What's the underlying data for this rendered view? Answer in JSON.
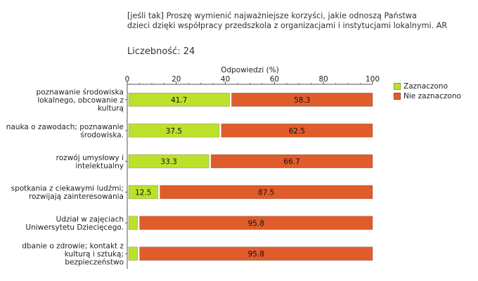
{
  "header": {
    "title_line1": "[jeśli tak] Proszę wymienić najważniejsze korzyści, jakie odnoszą Państwa",
    "title_line2": "dzieci dzięki współpracy przedszkola z organizacjami i instytucjami lokalnymi. AR",
    "count_label": "Liczebność: 24"
  },
  "colors": {
    "zaznaczono": "#bde02b",
    "nie_zaznaczono": "#e05c2a",
    "axis": "#555555",
    "text": "#222222"
  },
  "chart_data": {
    "type": "bar",
    "orientation": "horizontal",
    "stacked": true,
    "xlabel": "Odpowiedzi (%)",
    "xlim": [
      0,
      100
    ],
    "ticks": [
      0,
      20,
      40,
      60,
      80,
      100
    ],
    "categories": [
      [
        "poznawanie środowiska",
        "lokalnego, obcowanie z",
        "kulturą"
      ],
      [
        "nauka o zawodach; poznawanie",
        "środowiska."
      ],
      [
        "rozwój umysłowy i",
        "intelektualny"
      ],
      [
        "spotkania z ciekawymi ludźmi;",
        "rozwijają zainteresowania"
      ],
      [
        "Udział w zajęciach",
        "Uniwersytetu Dziecięcego."
      ],
      [
        "dbanie o zdrowie; kontakt z",
        "kulturą i sztuką;",
        "bezpieczeństwo"
      ]
    ],
    "series": [
      {
        "name": "Zaznaczono",
        "values": [
          41.7,
          37.5,
          33.3,
          12.5,
          4.2,
          4.2
        ],
        "labels": [
          "41.7",
          "37.5",
          "33.3",
          "12.5",
          "",
          ""
        ]
      },
      {
        "name": "Nie zaznaczono",
        "values": [
          58.3,
          62.5,
          66.7,
          87.5,
          95.8,
          95.8
        ],
        "labels": [
          "58.3",
          "62.5",
          "66.7",
          "87.5",
          "95.8",
          "95.8"
        ]
      }
    ],
    "legend_position": "right"
  }
}
